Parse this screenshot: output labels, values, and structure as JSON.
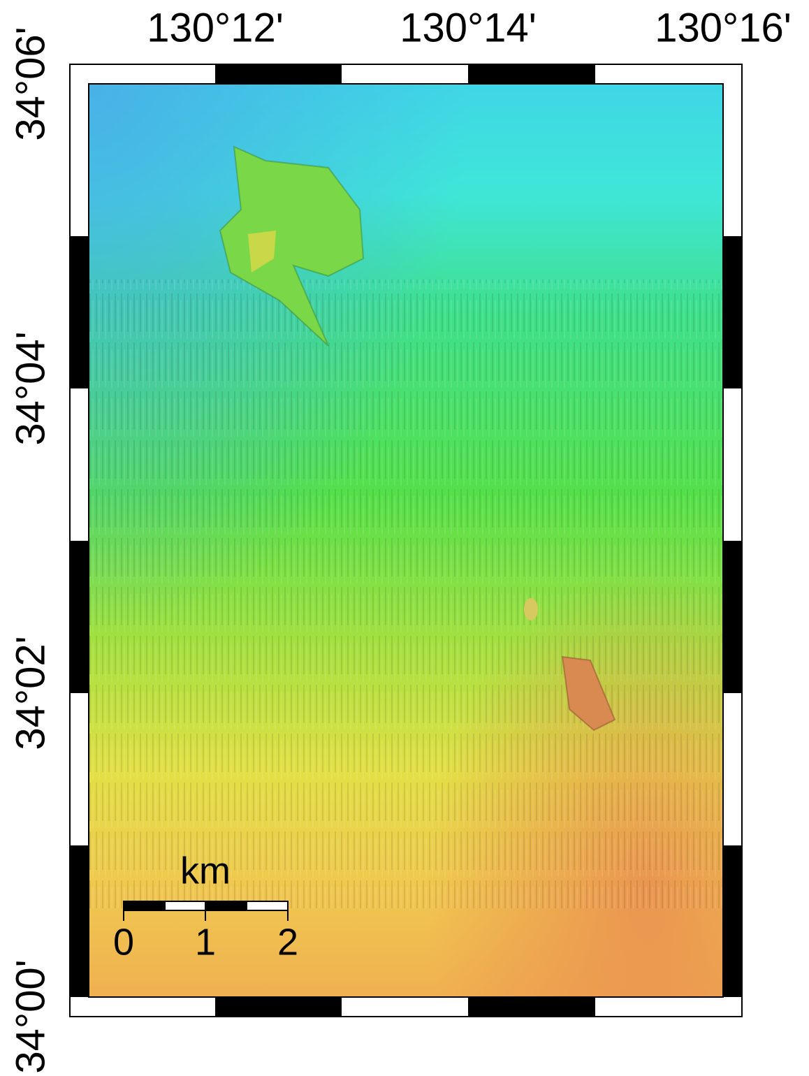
{
  "map": {
    "longitude_labels": [
      "130°12'",
      "130°14'",
      "130°16'"
    ],
    "latitude_labels": [
      "34°06'",
      "34°04'",
      "34°02'",
      "34°00'"
    ],
    "scale_bar": {
      "unit": "km",
      "labels": [
        "0",
        "1",
        "2"
      ]
    }
  }
}
